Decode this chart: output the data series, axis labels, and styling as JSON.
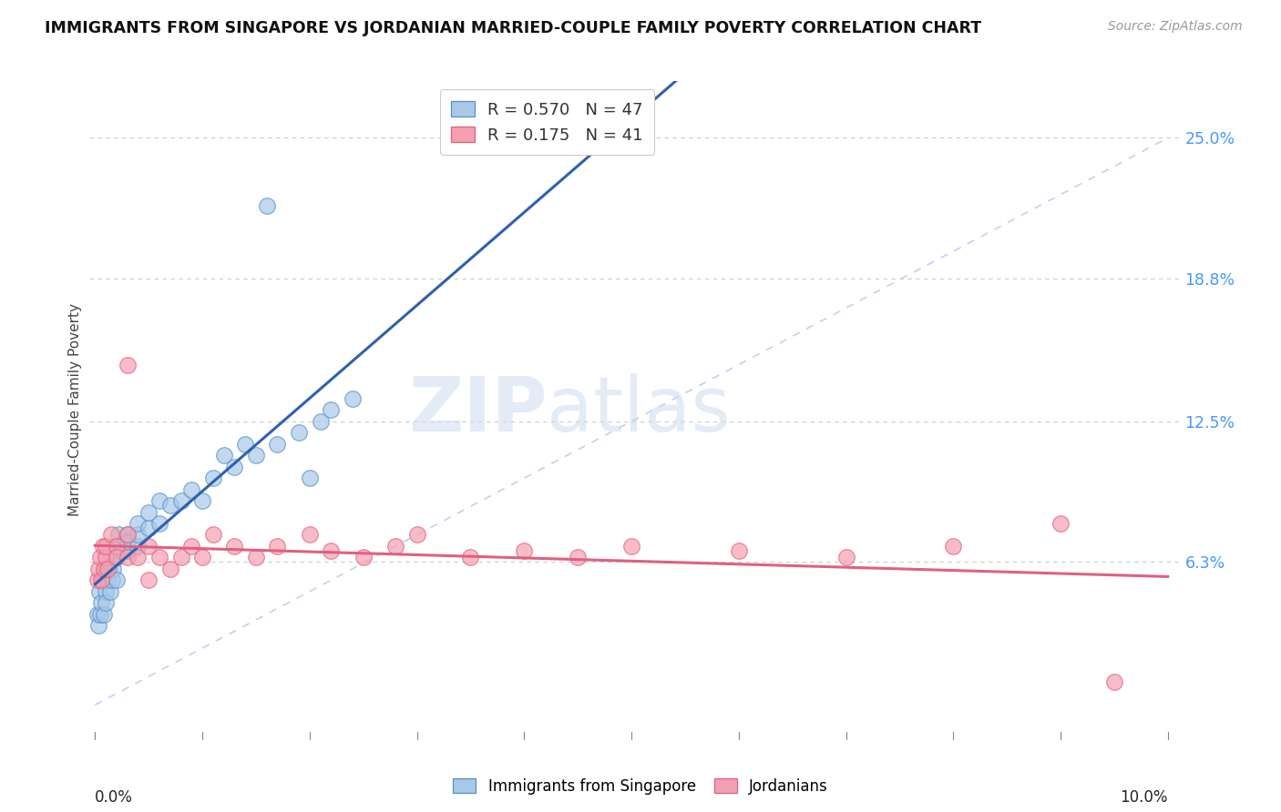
{
  "title": "IMMIGRANTS FROM SINGAPORE VS JORDANIAN MARRIED-COUPLE FAMILY POVERTY CORRELATION CHART",
  "source": "Source: ZipAtlas.com",
  "ylabel": "Married-Couple Family Poverty",
  "ytick_labels": [
    "25.0%",
    "18.8%",
    "12.5%",
    "6.3%"
  ],
  "ytick_values": [
    0.25,
    0.188,
    0.125,
    0.063
  ],
  "xlim": [
    0.0,
    0.1
  ],
  "ylim": [
    -0.015,
    0.275
  ],
  "legend_R1": "0.570",
  "legend_N1": "47",
  "legend_R2": "0.175",
  "legend_N2": "41",
  "color_blue": "#a8c8e8",
  "color_pink": "#f4a0b0",
  "color_blue_edge": "#5590c8",
  "color_pink_edge": "#e06080",
  "color_blue_line": "#3060b0",
  "color_pink_line": "#e06080",
  "color_diag": "#b0c8e8",
  "watermark_zip": "ZIP",
  "watermark_atlas": "atlas",
  "sg_x": [
    0.0002,
    0.0003,
    0.0004,
    0.0005,
    0.0006,
    0.0007,
    0.0008,
    0.0009,
    0.001,
    0.001,
    0.0012,
    0.0013,
    0.0014,
    0.0015,
    0.0016,
    0.0017,
    0.002,
    0.002,
    0.002,
    0.0022,
    0.0025,
    0.003,
    0.003,
    0.003,
    0.004,
    0.004,
    0.004,
    0.005,
    0.005,
    0.006,
    0.006,
    0.007,
    0.008,
    0.009,
    0.01,
    0.011,
    0.012,
    0.013,
    0.015,
    0.017,
    0.019,
    0.021,
    0.022,
    0.024,
    0.014,
    0.016,
    0.02
  ],
  "sg_y": [
    0.04,
    0.035,
    0.05,
    0.04,
    0.045,
    0.055,
    0.04,
    0.06,
    0.05,
    0.045,
    0.055,
    0.06,
    0.05,
    0.065,
    0.055,
    0.06,
    0.065,
    0.055,
    0.07,
    0.075,
    0.068,
    0.075,
    0.068,
    0.072,
    0.07,
    0.075,
    0.08,
    0.078,
    0.085,
    0.08,
    0.09,
    0.088,
    0.09,
    0.095,
    0.09,
    0.1,
    0.11,
    0.105,
    0.11,
    0.115,
    0.12,
    0.125,
    0.13,
    0.135,
    0.115,
    0.22,
    0.1
  ],
  "jo_x": [
    0.0002,
    0.0003,
    0.0005,
    0.0006,
    0.0007,
    0.0008,
    0.001,
    0.001,
    0.0012,
    0.0015,
    0.002,
    0.002,
    0.003,
    0.003,
    0.003,
    0.004,
    0.005,
    0.005,
    0.006,
    0.007,
    0.008,
    0.009,
    0.01,
    0.011,
    0.013,
    0.015,
    0.017,
    0.02,
    0.022,
    0.025,
    0.028,
    0.03,
    0.035,
    0.04,
    0.045,
    0.05,
    0.06,
    0.07,
    0.08,
    0.09,
    0.095
  ],
  "jo_y": [
    0.055,
    0.06,
    0.065,
    0.055,
    0.07,
    0.06,
    0.065,
    0.07,
    0.06,
    0.075,
    0.07,
    0.065,
    0.075,
    0.065,
    0.15,
    0.065,
    0.07,
    0.055,
    0.065,
    0.06,
    0.065,
    0.07,
    0.065,
    0.075,
    0.07,
    0.065,
    0.07,
    0.075,
    0.068,
    0.065,
    0.07,
    0.075,
    0.065,
    0.068,
    0.065,
    0.07,
    0.068,
    0.065,
    0.07,
    0.08,
    0.01
  ]
}
